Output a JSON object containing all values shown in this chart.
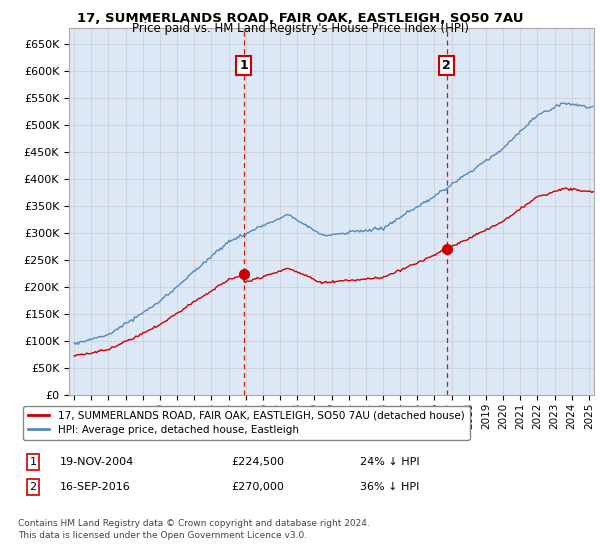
{
  "title": "17, SUMMERLANDS ROAD, FAIR OAK, EASTLEIGH, SO50 7AU",
  "subtitle": "Price paid vs. HM Land Registry's House Price Index (HPI)",
  "ylabel_ticks": [
    "£0",
    "£50K",
    "£100K",
    "£150K",
    "£200K",
    "£250K",
    "£300K",
    "£350K",
    "£400K",
    "£450K",
    "£500K",
    "£550K",
    "£600K",
    "£650K"
  ],
  "ytick_values": [
    0,
    50000,
    100000,
    150000,
    200000,
    250000,
    300000,
    350000,
    400000,
    450000,
    500000,
    550000,
    600000,
    650000
  ],
  "ylim": [
    0,
    680000
  ],
  "xlim_start": 1994.7,
  "xlim_end": 2025.3,
  "sale1_x": 2004.88,
  "sale1_y": 224500,
  "sale1_label": "1",
  "sale2_x": 2016.71,
  "sale2_y": 270000,
  "sale2_label": "2",
  "hpi_color": "#5588bb",
  "hpi_fill_color": "#dce8f5",
  "price_color": "#cc0000",
  "dashed_color": "#cc0000",
  "background_color": "#ffffff",
  "grid_color": "#cccccc",
  "legend_line1": "17, SUMMERLANDS ROAD, FAIR OAK, EASTLEIGH, SO50 7AU (detached house)",
  "legend_line2": "HPI: Average price, detached house, Eastleigh",
  "annotation1_date": "19-NOV-2004",
  "annotation1_price": "£224,500",
  "annotation1_hpi": "24% ↓ HPI",
  "annotation2_date": "16-SEP-2016",
  "annotation2_price": "£270,000",
  "annotation2_hpi": "36% ↓ HPI",
  "footer": "Contains HM Land Registry data © Crown copyright and database right 2024.\nThis data is licensed under the Open Government Licence v3.0."
}
